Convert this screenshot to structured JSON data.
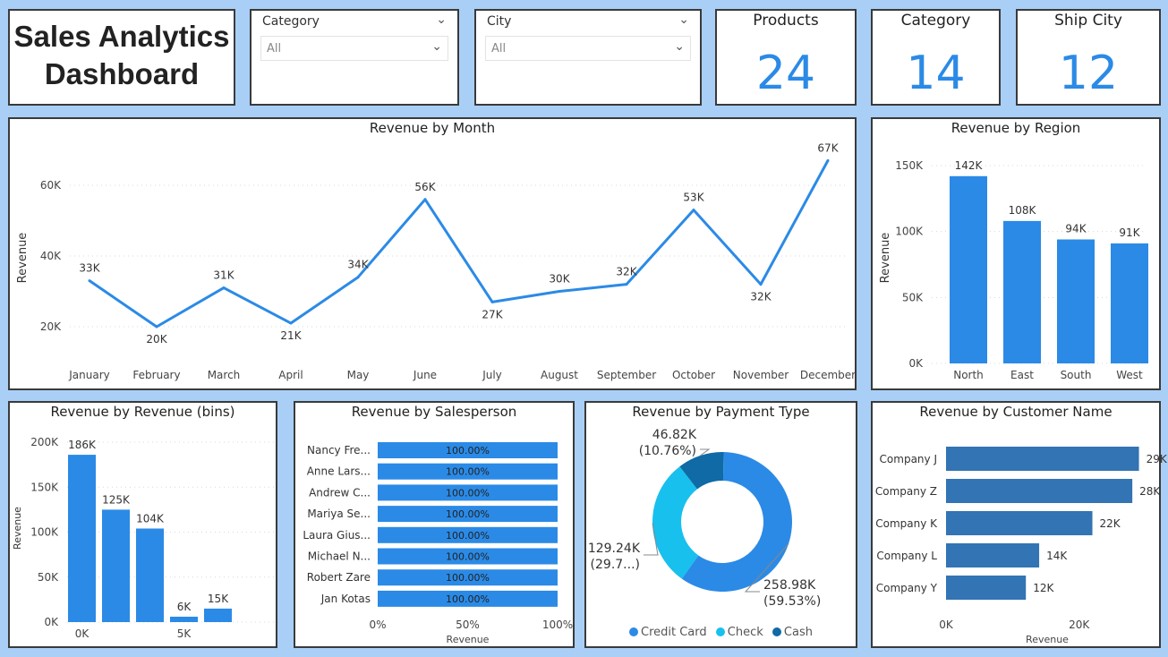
{
  "header": {
    "title_line1": "Sales Analytics",
    "title_line2": "Dashboard"
  },
  "slicers": [
    {
      "label": "Category",
      "value": "All"
    },
    {
      "label": "City",
      "value": "All"
    }
  ],
  "cards": [
    {
      "label": "Products",
      "value": "24"
    },
    {
      "label": "Category",
      "value": "14"
    },
    {
      "label": "Ship City",
      "value": "12"
    }
  ],
  "colors": {
    "accent": "#2b8ae6",
    "bar_dark": "#3274b4",
    "donut_check": "#18c0ee",
    "donut_cash": "#0f6aa6",
    "background": "#a9cff7"
  },
  "icons": {
    "chevron": "chevron-down-icon"
  },
  "chart_data": [
    {
      "id": "monthly",
      "type": "line",
      "title": "Revenue by Month",
      "ylabel": "Revenue",
      "categories": [
        "January",
        "February",
        "March",
        "April",
        "May",
        "June",
        "July",
        "August",
        "September",
        "October",
        "November",
        "December"
      ],
      "values": [
        33,
        20,
        31,
        21,
        34,
        56,
        27,
        30,
        32,
        53,
        32,
        67
      ],
      "data_labels": [
        "33K",
        "20K",
        "31K",
        "21K",
        "34K",
        "56K",
        "27K",
        "30K",
        "32K",
        "53K",
        "32K",
        "67K"
      ],
      "yticks": [
        20,
        40,
        60
      ],
      "ytick_labels": [
        "20K",
        "40K",
        "60K"
      ],
      "ylim": [
        10,
        70
      ],
      "grid": true
    },
    {
      "id": "region",
      "type": "bar",
      "title": "Revenue by Region",
      "ylabel": "Revenue",
      "categories": [
        "North",
        "East",
        "South",
        "West"
      ],
      "values": [
        142,
        108,
        94,
        91
      ],
      "data_labels": [
        "142K",
        "108K",
        "94K",
        "91K"
      ],
      "yticks": [
        0,
        50,
        100,
        150
      ],
      "ytick_labels": [
        "0K",
        "50K",
        "100K",
        "150K"
      ],
      "ylim": [
        0,
        150
      ],
      "grid": true
    },
    {
      "id": "bins",
      "type": "bar",
      "title": "Revenue by Revenue (bins)",
      "ylabel": "Revenue",
      "categories": [
        "0K",
        "",
        "",
        "5K",
        ""
      ],
      "values": [
        186,
        125,
        104,
        6,
        15
      ],
      "data_labels": [
        "186K",
        "125K",
        "104K",
        "6K",
        "15K"
      ],
      "yticks": [
        0,
        50,
        100,
        150,
        200
      ],
      "ytick_labels": [
        "0K",
        "50K",
        "100K",
        "150K",
        "200K"
      ],
      "ylim": [
        0,
        200
      ],
      "grid": true
    },
    {
      "id": "salesperson",
      "type": "bar",
      "orientation": "horizontal",
      "title": "Revenue by Salesperson",
      "xlabel": "Revenue",
      "categories": [
        "Nancy Fre...",
        "Anne Lars...",
        "Andrew C...",
        "Mariya Se...",
        "Laura Gius...",
        "Michael N...",
        "Robert Zare",
        "Jan Kotas"
      ],
      "values": [
        100,
        100,
        100,
        100,
        100,
        100,
        100,
        100
      ],
      "data_labels": [
        "100.00%",
        "100.00%",
        "100.00%",
        "100.00%",
        "100.00%",
        "100.00%",
        "100.00%",
        "100.00%"
      ],
      "xticks": [
        0,
        50,
        100
      ],
      "xtick_labels": [
        "0%",
        "50%",
        "100%"
      ],
      "xlim": [
        0,
        100
      ]
    },
    {
      "id": "payment",
      "type": "pie",
      "title": "Revenue by Payment Type",
      "slices": [
        {
          "name": "Credit Card",
          "value": 258.98,
          "label_value": "258.98K",
          "label_pct": "(59.53%)"
        },
        {
          "name": "Check",
          "value": 129.24,
          "label_value": "129.24K",
          "label_pct": "(29.7...)"
        },
        {
          "name": "Cash",
          "value": 46.82,
          "label_value": "46.82K",
          "label_pct": "(10.76%)"
        }
      ],
      "legend": "bottom"
    },
    {
      "id": "customer",
      "type": "bar",
      "orientation": "horizontal",
      "title": "Revenue by Customer Name",
      "xlabel": "Revenue",
      "categories": [
        "Company J",
        "Company Z",
        "Company K",
        "Company L",
        "Company Y"
      ],
      "values": [
        29,
        28,
        22,
        14,
        12
      ],
      "data_labels": [
        "29K",
        "28K",
        "22K",
        "14K",
        "12K"
      ],
      "xticks": [
        0,
        20
      ],
      "xtick_labels": [
        "0K",
        "20K"
      ],
      "xlim": [
        0,
        30
      ]
    }
  ]
}
